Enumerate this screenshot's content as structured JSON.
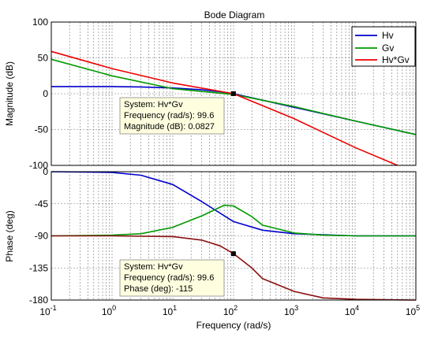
{
  "figure": {
    "title": "Bode Diagram",
    "xlabel": "Frequency  (rad/s)"
  },
  "legend": {
    "placement": "top-right",
    "entries": [
      "Hv",
      "Gv",
      "Hv*Gv"
    ]
  },
  "colors": {
    "Hv": "#0000cc",
    "Gv": "#009900",
    "HvGv": "#ee0000",
    "phaseHvGv": "#8b1010"
  },
  "chart_data": [
    {
      "type": "line",
      "panel": "magnitude",
      "ylabel": "Magnitude (dB)",
      "xscale": "log",
      "xlim": [
        0.1,
        100000
      ],
      "ylim": [
        -100,
        100
      ],
      "yticks": [
        100,
        50,
        0,
        -50,
        -100
      ],
      "xticks": [
        "10",
        "10",
        "10",
        "10",
        "10",
        "10",
        "10"
      ],
      "xtick_exponents": [
        "-1",
        "0",
        "1",
        "2",
        "3",
        "4",
        "5"
      ],
      "grid": true,
      "series": [
        {
          "name": "Hv",
          "x": [
            0.1,
            1,
            3,
            10,
            30,
            60,
            100,
            300,
            1000,
            3000,
            10000,
            100000
          ],
          "y": [
            10,
            10,
            9.5,
            8,
            5.5,
            2.7,
            0,
            -9,
            -19,
            -28,
            -38,
            -57
          ]
        },
        {
          "name": "Gv",
          "x": [
            0.1,
            1,
            10,
            100,
            1000,
            10000,
            100000
          ],
          "y": [
            48,
            25,
            7,
            -1,
            -18,
            -38,
            -57
          ]
        },
        {
          "name": "Hv*Gv",
          "x": [
            0.1,
            1,
            10,
            100,
            1000,
            10000,
            50000
          ],
          "y": [
            59,
            35,
            15,
            0,
            -35,
            -75,
            -100
          ]
        }
      ],
      "annotation": {
        "lines": [
          "System: Hv*Gv",
          "Frequency (rad/s): 99.6",
          "Magnitude (dB): 0.0827"
        ],
        "x": 99.6,
        "y": 0.0827
      }
    },
    {
      "type": "line",
      "panel": "phase",
      "ylabel": "Phase (deg)",
      "xscale": "log",
      "xlim": [
        0.1,
        100000
      ],
      "ylim": [
        -180,
        0
      ],
      "yticks": [
        0,
        -45,
        -90,
        -135,
        -180
      ],
      "grid": true,
      "series": [
        {
          "name": "Hv",
          "x": [
            0.1,
            1,
            3,
            10,
            30,
            100,
            300,
            1000,
            10000,
            100000
          ],
          "y": [
            0,
            -1,
            -5,
            -18,
            -42,
            -70,
            -82,
            -87,
            -90,
            -90
          ]
        },
        {
          "name": "Gv",
          "x": [
            0.1,
            1,
            3,
            10,
            30,
            70,
            100,
            200,
            300,
            1000,
            3000,
            10000,
            100000
          ],
          "y": [
            -90,
            -89,
            -87,
            -78,
            -62,
            -47,
            -48,
            -63,
            -75,
            -86,
            -89,
            -90,
            -90
          ]
        },
        {
          "name": "Hv*Gv",
          "x": [
            0.1,
            1,
            10,
            30,
            60,
            100,
            200,
            300,
            1000,
            3000,
            10000,
            100000
          ],
          "y": [
            -90,
            -90,
            -91,
            -96,
            -104,
            -115,
            -135,
            -150,
            -168,
            -177,
            -179,
            -180
          ]
        }
      ],
      "annotation": {
        "lines": [
          "System: Hv*Gv",
          "Frequency (rad/s): 99.6",
          "Phase (deg): -115"
        ],
        "x": 99.6,
        "y": -115
      }
    }
  ]
}
